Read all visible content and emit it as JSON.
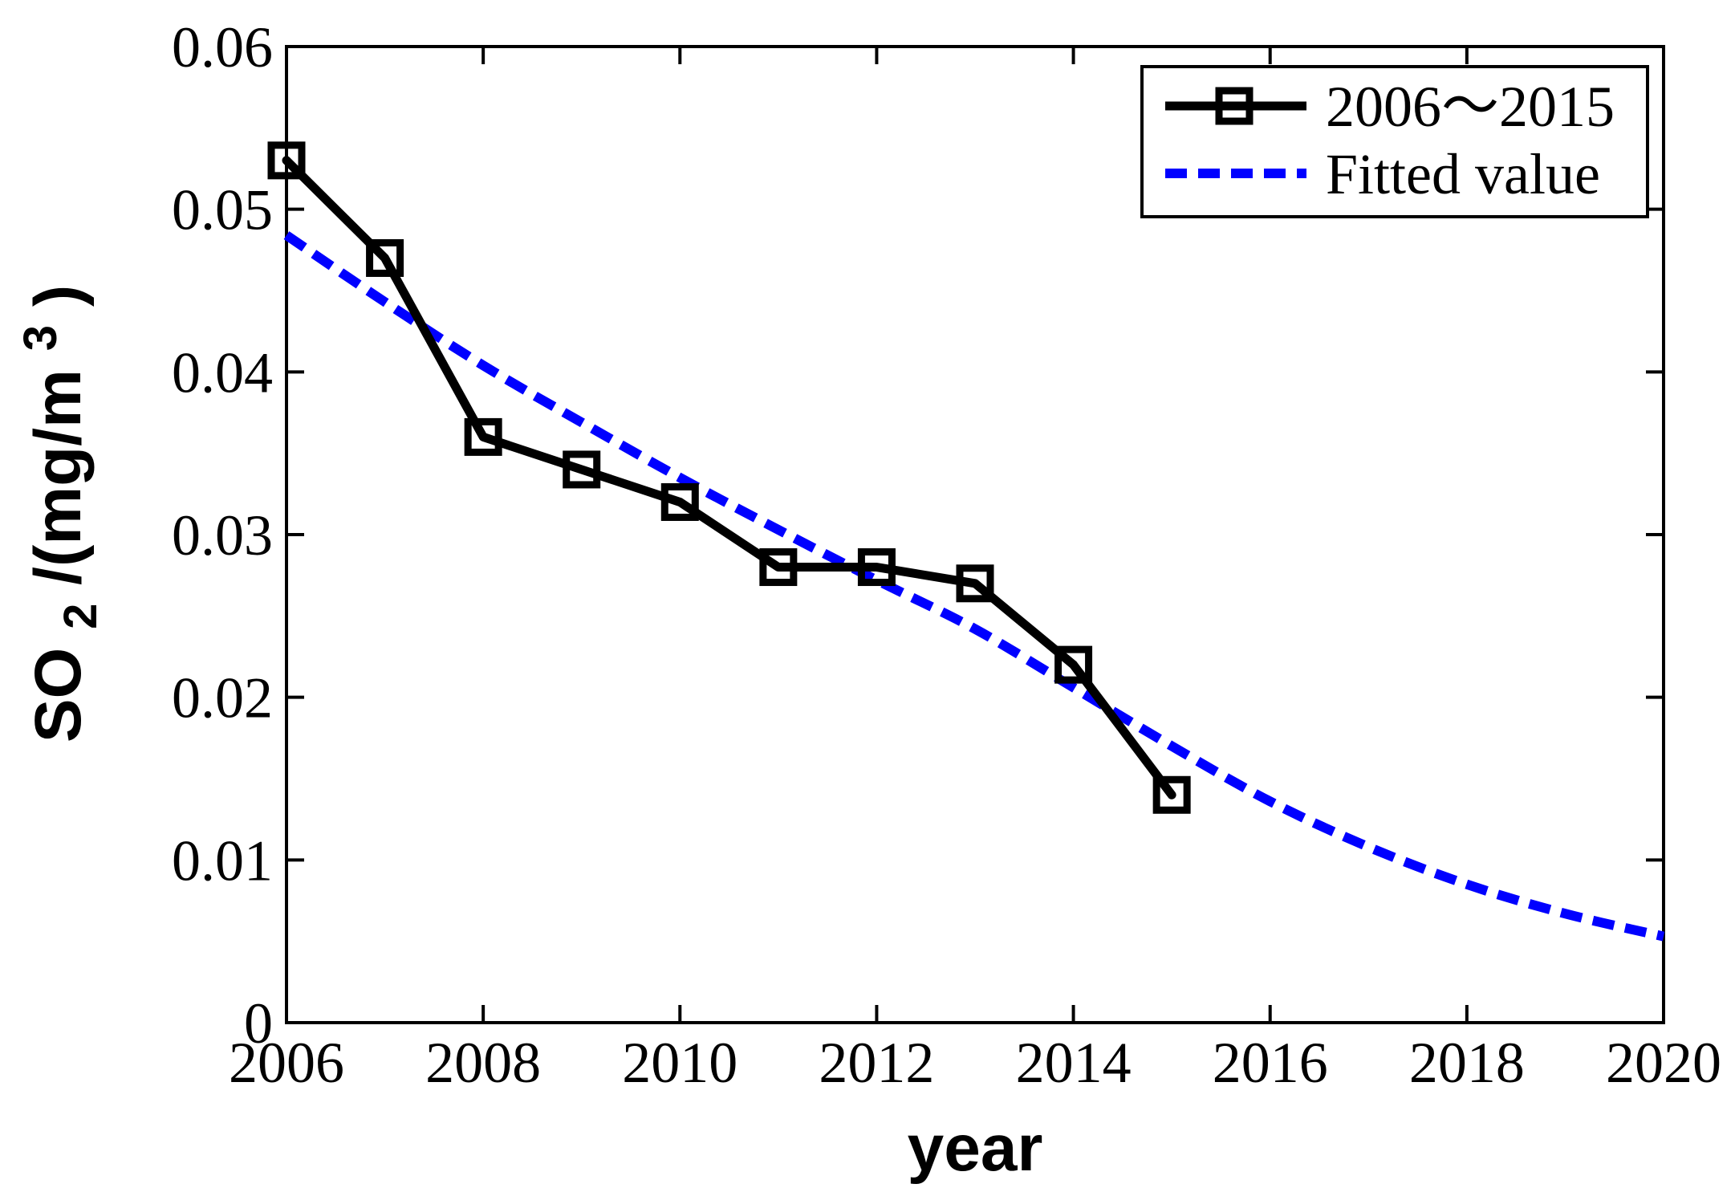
{
  "chart_data": {
    "type": "line",
    "title": "",
    "xlabel": "year",
    "ylabel": "SO2/(mg/m3)",
    "ylabel_parts": {
      "base": "SO",
      "sub": "2",
      "mid": "/(mg/m",
      "sup": "3",
      "end": ")"
    },
    "xlim": [
      2006,
      2020
    ],
    "ylim": [
      0,
      0.06
    ],
    "grid": false,
    "legend_position": "top-right",
    "x_tick_labels": [
      "2006",
      "2008",
      "2010",
      "2012",
      "2014",
      "2016",
      "2018",
      "2020"
    ],
    "x_tick_values": [
      2006,
      2008,
      2010,
      2012,
      2014,
      2016,
      2018,
      2020
    ],
    "y_tick_labels": [
      "0",
      "0.01",
      "0.02",
      "0.03",
      "0.04",
      "0.05",
      "0.06"
    ],
    "y_tick_values": [
      0,
      0.01,
      0.02,
      0.03,
      0.04,
      0.05,
      0.06
    ],
    "series": [
      {
        "name": "2006～2015",
        "style": "solid-line-open-square-markers",
        "color": "#000000",
        "x": [
          2006,
          2007,
          2008,
          2009,
          2010,
          2011,
          2012,
          2013,
          2014,
          2015
        ],
        "values": [
          0.053,
          0.047,
          0.036,
          0.034,
          0.032,
          0.028,
          0.028,
          0.027,
          0.022,
          0.014
        ]
      },
      {
        "name": "Fitted value",
        "style": "dashed-line",
        "color": "#0000ff",
        "x": [
          2006,
          2007,
          2008,
          2009,
          2010,
          2011,
          2012,
          2013,
          2014,
          2015,
          2016,
          2017,
          2018,
          2019,
          2020
        ],
        "values": [
          0.0484,
          0.0443,
          0.0404,
          0.0369,
          0.0335,
          0.0303,
          0.0272,
          0.0242,
          0.0206,
          0.017,
          0.0136,
          0.0108,
          0.0085,
          0.0067,
          0.0053
        ]
      }
    ]
  },
  "colors": {
    "background": "#ffffff",
    "axis": "#000000",
    "series1": "#000000",
    "fitted": "#0000ff"
  }
}
